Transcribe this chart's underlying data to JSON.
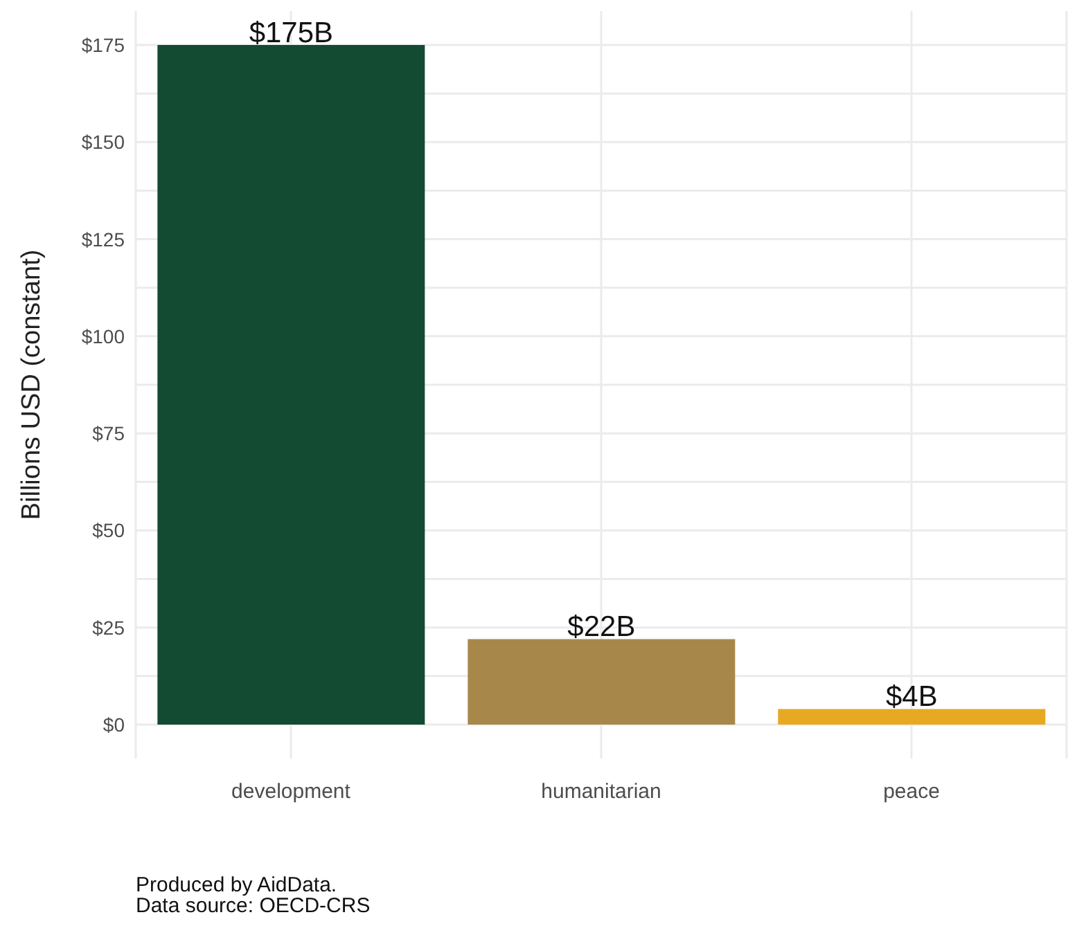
{
  "chart_data": {
    "type": "bar",
    "ylabel": "Billions USD (constant)",
    "categories": [
      "development",
      "humanitarian",
      "peace"
    ],
    "values": [
      175,
      22,
      4
    ],
    "colors": [
      "#134a32",
      "#a8884a",
      "#e8a922"
    ],
    "value_labels": [
      "$175B",
      "$22B",
      "$4B"
    ],
    "ylim": [
      -8.75,
      183.75
    ],
    "yticks": [
      {
        "value": 0,
        "label": "$0"
      },
      {
        "value": 12.5,
        "label": null
      },
      {
        "value": 25,
        "label": "$25"
      },
      {
        "value": 37.5,
        "label": null
      },
      {
        "value": 50,
        "label": "$50"
      },
      {
        "value": 62.5,
        "label": null
      },
      {
        "value": 75,
        "label": "$75"
      },
      {
        "value": 87.5,
        "label": null
      },
      {
        "value": 100,
        "label": "$100"
      },
      {
        "value": 112.5,
        "label": null
      },
      {
        "value": 125,
        "label": "$125"
      },
      {
        "value": 137.5,
        "label": null
      },
      {
        "value": 150,
        "label": "$150"
      },
      {
        "value": 162.5,
        "label": null
      },
      {
        "value": 175,
        "label": "$175"
      }
    ],
    "grid": true,
    "legend": false,
    "annotations": [
      "Produced by AidData.",
      "Data source: OECD-CRS"
    ]
  }
}
